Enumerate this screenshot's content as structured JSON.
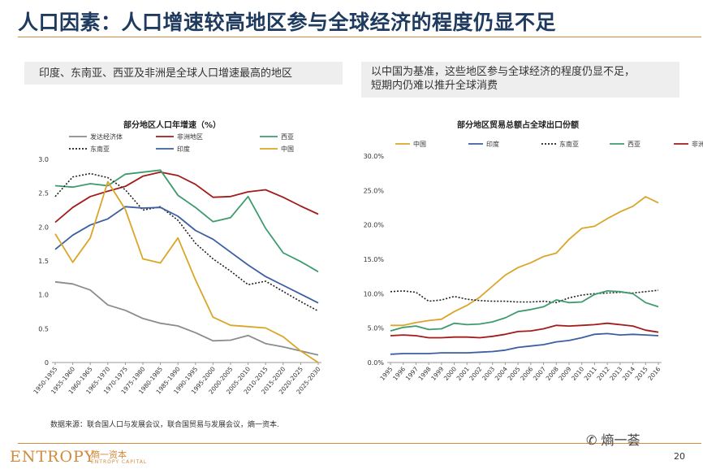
{
  "page": {
    "title": "人口因素：人口增速较高地区参与全球经济的程度仍显不足",
    "left_note": "印度、东南亚、西亚及非洲是全球人口增速最高的地区",
    "right_note_line1": "以中国为基准，这些地区参与全球经济的程度仍显不足，",
    "right_note_line2": "短期内仍难以推升全球消费",
    "source": "数据来源：联合国人口与发展会议，联合国贸易与发展会议，熵一资本.",
    "logo_text": "ENTROPY",
    "logo_cn": "熵一资本",
    "logo_sub": "ENTROPY CAPITAL",
    "wechat": "熵一荟",
    "page_number": "20"
  },
  "colors": {
    "accent": "#d28a3c",
    "title": "#1f3a5f",
    "gray": "#8c8c8c",
    "darkred": "#a31b1b",
    "green": "#3f9b6e",
    "black": "#222222",
    "blue": "#3b5fa0",
    "gold": "#d9a627"
  },
  "chart_data": [
    {
      "type": "line",
      "title": "部分地区人口年增速（%）",
      "ylim": [
        0,
        3.0
      ],
      "yticks": [
        "0",
        "0.5",
        "1.0",
        "1.5",
        "2.0",
        "2.5",
        "3.0"
      ],
      "categories": [
        "1950-1955",
        "1955-1960",
        "1960-1965",
        "1965-1970",
        "1970-1975",
        "1975-1980",
        "1980-1985",
        "1985-1990",
        "1990-1995",
        "1995-2000",
        "2000-2005",
        "2005-2010",
        "2010-2015",
        "2015-2020",
        "2020-2025",
        "2025-2030"
      ],
      "series": [
        {
          "name": "发达经济体",
          "color": "gray",
          "dash": false,
          "values": [
            1.19,
            1.16,
            1.07,
            0.85,
            0.77,
            0.65,
            0.58,
            0.54,
            0.44,
            0.32,
            0.33,
            0.4,
            0.28,
            0.23,
            0.17,
            0.11
          ]
        },
        {
          "name": "非洲地区",
          "color": "darkred",
          "dash": false,
          "values": [
            2.07,
            2.29,
            2.45,
            2.53,
            2.6,
            2.75,
            2.81,
            2.76,
            2.63,
            2.44,
            2.45,
            2.52,
            2.55,
            2.44,
            2.31,
            2.19
          ]
        },
        {
          "name": "西亚",
          "color": "green",
          "dash": false,
          "values": [
            2.61,
            2.59,
            2.64,
            2.61,
            2.78,
            2.81,
            2.84,
            2.47,
            2.29,
            2.08,
            2.14,
            2.45,
            1.98,
            1.62,
            1.49,
            1.34
          ]
        },
        {
          "name": "东南亚",
          "color": "black",
          "dash": true,
          "values": [
            2.45,
            2.74,
            2.79,
            2.73,
            2.55,
            2.25,
            2.3,
            2.1,
            1.76,
            1.53,
            1.35,
            1.15,
            1.2,
            1.05,
            0.9,
            0.76
          ]
        },
        {
          "name": "印度",
          "color": "blue",
          "dash": false,
          "values": [
            1.67,
            1.88,
            2.03,
            2.12,
            2.3,
            2.28,
            2.29,
            2.16,
            1.95,
            1.82,
            1.63,
            1.44,
            1.27,
            1.14,
            1.01,
            0.88
          ]
        },
        {
          "name": "中国",
          "color": "gold",
          "dash": false,
          "values": [
            1.9,
            1.48,
            1.84,
            2.67,
            2.26,
            1.53,
            1.47,
            1.84,
            1.22,
            0.67,
            0.55,
            0.53,
            0.51,
            0.38,
            0.17,
            0.0
          ]
        }
      ],
      "legend": [
        [
          "发达经济体",
          "非洲地区",
          "西亚"
        ],
        [
          "东南亚",
          "印度",
          "中国"
        ]
      ]
    },
    {
      "type": "line",
      "title": "部分地区贸易总额占全球出口份额",
      "ylim": [
        0,
        30.0
      ],
      "yticks": [
        "0.0%",
        "5.0%",
        "10.0%",
        "15.0%",
        "20.0%",
        "25.0%",
        "30.0%"
      ],
      "categories": [
        "1995",
        "1996",
        "1997",
        "1998",
        "1999",
        "2000",
        "2001",
        "2002",
        "2003",
        "2004",
        "2005",
        "2006",
        "2007",
        "2008",
        "2009",
        "2010",
        "2011",
        "2012",
        "2013",
        "2014",
        "2015",
        "2016"
      ],
      "series": [
        {
          "name": "中国",
          "color": "gold",
          "dash": false,
          "values": [
            5.4,
            5.4,
            5.8,
            6.1,
            6.3,
            7.4,
            8.3,
            9.5,
            11.1,
            12.7,
            13.8,
            14.5,
            15.4,
            15.9,
            17.9,
            19.5,
            19.8,
            20.9,
            21.9,
            22.7,
            24.1,
            23.2
          ]
        },
        {
          "name": "印度",
          "color": "blue",
          "dash": false,
          "values": [
            1.2,
            1.3,
            1.3,
            1.3,
            1.4,
            1.4,
            1.4,
            1.5,
            1.6,
            1.8,
            2.2,
            2.4,
            2.6,
            3.0,
            3.2,
            3.6,
            4.1,
            4.2,
            4.0,
            4.1,
            4.0,
            3.9
          ]
        },
        {
          "name": "东南亚",
          "color": "black",
          "dash": true,
          "values": [
            10.3,
            10.4,
            10.2,
            8.9,
            9.1,
            9.6,
            9.2,
            9.0,
            8.9,
            8.9,
            8.8,
            8.8,
            8.9,
            8.7,
            9.4,
            9.8,
            10.0,
            10.1,
            10.2,
            10.1,
            10.3,
            10.5
          ]
        },
        {
          "name": "西亚",
          "color": "green",
          "dash": false,
          "values": [
            4.6,
            5.1,
            5.3,
            4.8,
            4.9,
            5.7,
            5.5,
            5.6,
            5.9,
            6.5,
            7.4,
            7.7,
            8.1,
            9.1,
            8.7,
            8.8,
            9.9,
            10.4,
            10.3,
            10.0,
            8.7,
            8.1
          ]
        },
        {
          "name": "非洲地区",
          "color": "darkred",
          "dash": false,
          "values": [
            3.9,
            4.0,
            3.9,
            3.6,
            3.6,
            3.7,
            3.7,
            3.6,
            3.8,
            4.1,
            4.5,
            4.6,
            4.9,
            5.4,
            5.3,
            5.4,
            5.5,
            5.7,
            5.5,
            5.3,
            4.7,
            4.4
          ]
        }
      ],
      "legend": [
        [
          "中国",
          "印度",
          "东南亚",
          "西亚",
          "非洲地区"
        ]
      ]
    }
  ]
}
